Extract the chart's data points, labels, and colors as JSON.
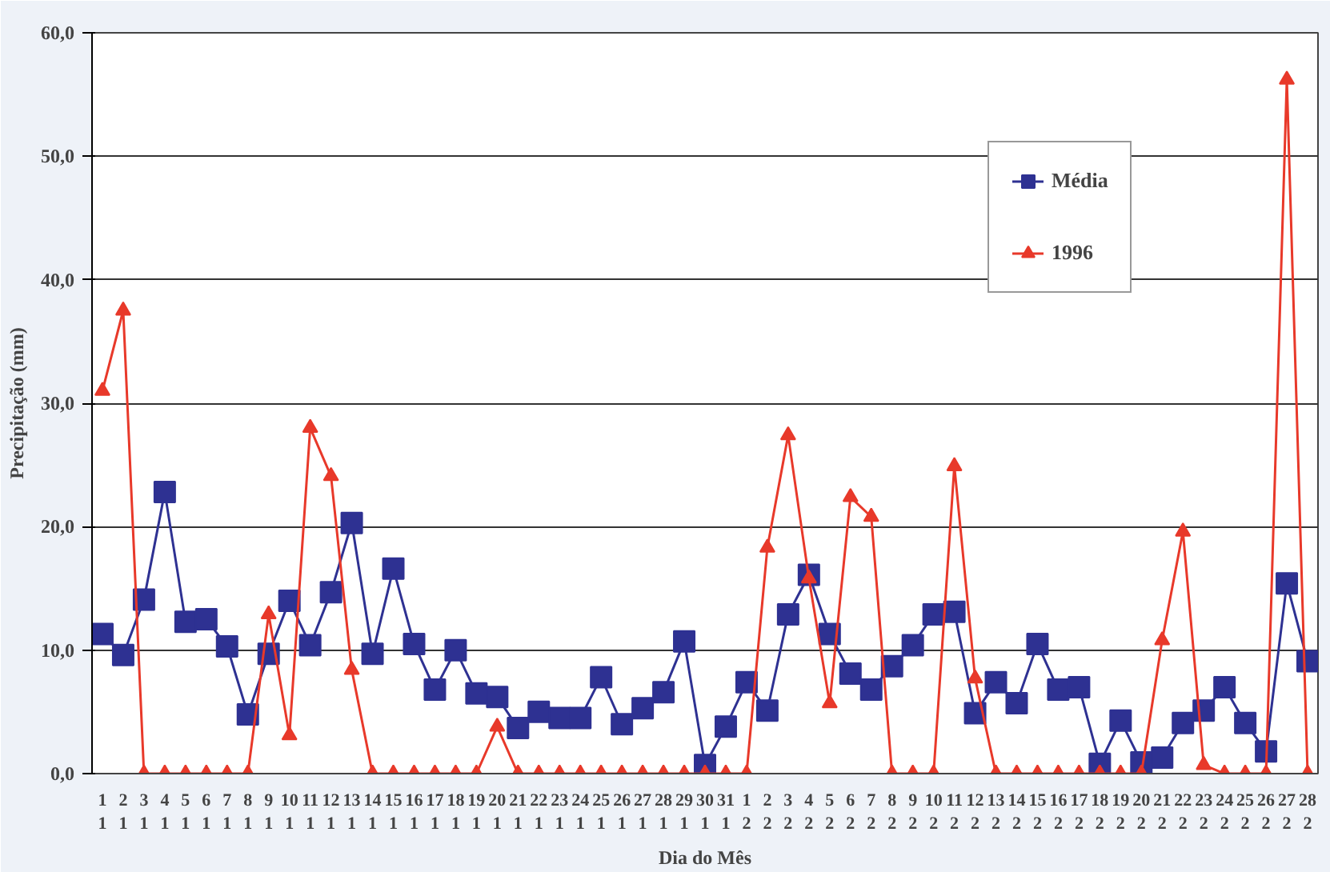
{
  "chart_data": {
    "type": "line",
    "xlabel": "Dia do Mês",
    "ylabel": "Precipitação (mm)",
    "categories": [
      "1\n1",
      "2\n1",
      "3\n1",
      "4\n1",
      "5\n1",
      "6\n1",
      "7\n1",
      "8\n1",
      "9\n1",
      "10\n1",
      "11\n1",
      "12\n1",
      "13\n1",
      "14\n1",
      "15\n1",
      "16\n1",
      "17\n1",
      "18\n1",
      "19\n1",
      "20\n1",
      "21\n1",
      "22\n1",
      "23\n1",
      "24\n1",
      "25\n1",
      "26\n1",
      "27\n1",
      "28\n1",
      "29\n1",
      "30\n1",
      "31\n1",
      "1\n2",
      "2\n2",
      "3\n2",
      "4\n2",
      "5\n2",
      "6\n2",
      "7\n2",
      "8\n2",
      "9\n2",
      "10\n2",
      "11\n2",
      "12\n2",
      "13\n2",
      "14\n2",
      "15\n2",
      "16\n2",
      "17\n2",
      "18\n2",
      "19\n2",
      "20\n2",
      "21\n2",
      "22\n2",
      "23\n2",
      "24\n2",
      "25\n2",
      "26\n2",
      "27\n2",
      "28\n2"
    ],
    "series": [
      {
        "name": "Média",
        "color": "#2e3192",
        "marker": "square",
        "values": [
          11.3,
          9.6,
          14.1,
          22.8,
          12.3,
          12.5,
          10.3,
          4.8,
          9.7,
          14.0,
          10.4,
          14.7,
          20.3,
          9.7,
          16.6,
          10.5,
          6.8,
          10.0,
          6.5,
          6.2,
          3.7,
          5.0,
          4.5,
          4.5,
          7.8,
          4.0,
          5.3,
          6.6,
          10.7,
          0.7,
          3.8,
          7.4,
          5.1,
          12.9,
          16.1,
          11.3,
          8.1,
          6.8,
          8.7,
          10.4,
          12.9,
          13.1,
          4.9,
          7.4,
          5.7,
          10.5,
          6.8,
          7.0,
          0.8,
          4.3,
          0.9,
          1.3,
          4.1,
          5.1,
          7.0,
          4.1,
          1.8,
          15.4,
          9.1
        ]
      },
      {
        "name": "1996",
        "color": "#e8392a",
        "marker": "triangle",
        "values": [
          31.0,
          37.5,
          0,
          0,
          0,
          0,
          0,
          0,
          12.9,
          3.1,
          28.0,
          24.1,
          8.4,
          0,
          0,
          0,
          0,
          0,
          0,
          3.8,
          0,
          0,
          0,
          0,
          0,
          0,
          0,
          0,
          0,
          0,
          0,
          0,
          18.3,
          27.4,
          15.8,
          5.7,
          22.4,
          20.8,
          0,
          0,
          0,
          24.9,
          7.7,
          0,
          0,
          0,
          0,
          0,
          0,
          0,
          0,
          10.8,
          19.6,
          0.7,
          0,
          0,
          0,
          56.2,
          0
        ]
      }
    ],
    "ylim": [
      0,
      60
    ],
    "yticks": [
      {
        "value": 0,
        "label": "0,0"
      },
      {
        "value": 10,
        "label": "10,0"
      },
      {
        "value": 20,
        "label": "20,0"
      },
      {
        "value": 30,
        "label": "30,0"
      },
      {
        "value": 40,
        "label": "40,0"
      },
      {
        "value": 50,
        "label": "50,0"
      },
      {
        "value": 60,
        "label": "60,0"
      }
    ],
    "grid": "y",
    "legend": "top right"
  }
}
